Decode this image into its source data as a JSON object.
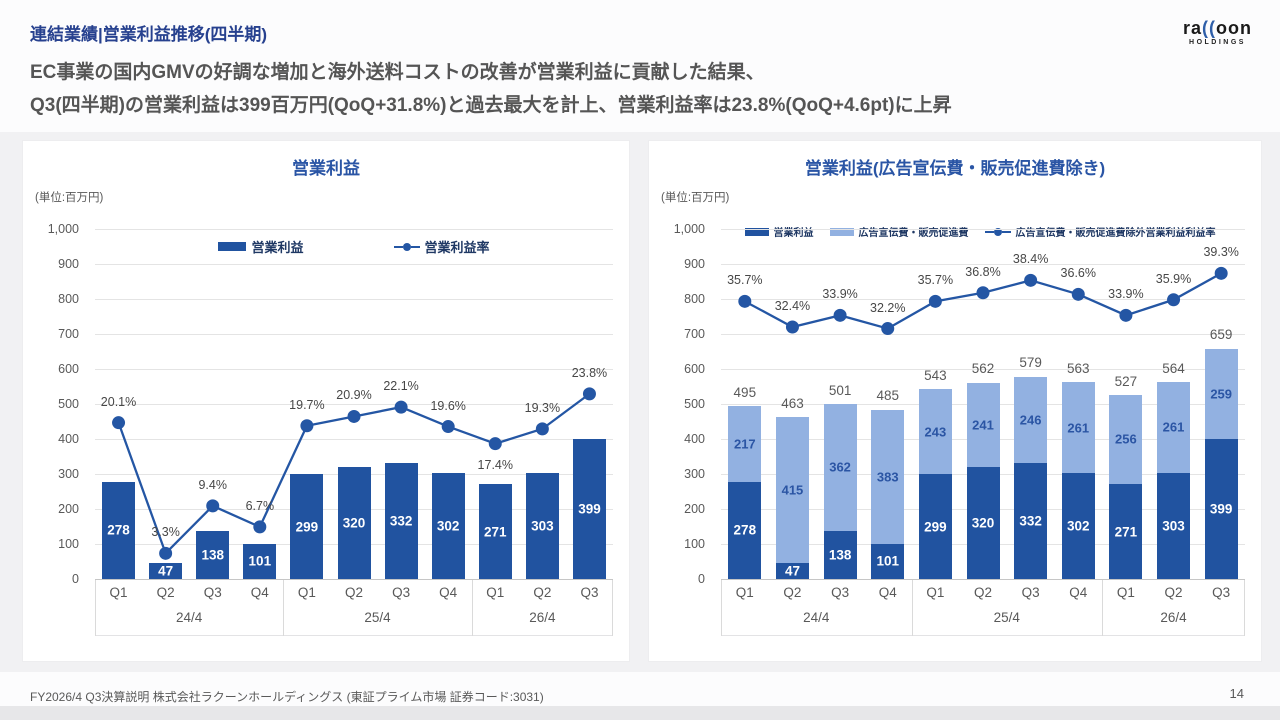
{
  "header": {
    "title": "連結業績|営業利益推移(四半期)",
    "subtitle_line1": "EC事業の国内GMVの好調な増加と海外送料コストの改善が営業利益に貢献した結果、",
    "subtitle_line2": "Q3(四半期)の営業利益は399百万円(QoQ+31.8%)と過去最大を計上、営業利益率は23.8%(QoQ+4.6pt)に上昇"
  },
  "logo": {
    "part1": "ra",
    "accent": "((",
    "part2": "oon",
    "sub": "HOLDINGS"
  },
  "footer": {
    "text": "FY2026/4 Q3決算説明 株式会社ラクーンホールディングス (東証プライム市場 証券コード:3031)",
    "page_number": "14"
  },
  "colors": {
    "bar_primary": "#2153A0",
    "bar_secondary": "#92B1E1",
    "line": "#2456A4",
    "title_navy": "#27418F",
    "chart_title_blue": "#2A55A5",
    "text_gray": "#595959",
    "band_gray": "#F1F1F3"
  },
  "chart_data": [
    {
      "type": "bar",
      "title": "営業利益",
      "unit_label": "(単位:百万円)",
      "ylim": [
        0,
        1000
      ],
      "ytick_step": 100,
      "secondary_ylim": [
        0,
        45
      ],
      "grid": true,
      "categories": [
        "Q1",
        "Q2",
        "Q3",
        "Q4",
        "Q1",
        "Q2",
        "Q3",
        "Q4",
        "Q1",
        "Q2",
        "Q3"
      ],
      "groups": [
        {
          "label": "24/4",
          "span": 4
        },
        {
          "label": "25/4",
          "span": 4
        },
        {
          "label": "26/4",
          "span": 3
        }
      ],
      "series": [
        {
          "name": "営業利益",
          "color": "#2153A0",
          "label_color": "#FFFFFF",
          "values": [
            278,
            47,
            138,
            101,
            299,
            320,
            332,
            302,
            271,
            303,
            399
          ]
        }
      ],
      "line_series": {
        "name": "営業利益率",
        "color": "#2456A4",
        "values_pct": [
          20.1,
          3.3,
          9.4,
          6.7,
          19.7,
          20.9,
          22.1,
          19.6,
          17.4,
          19.3,
          23.8
        ],
        "labels_below": [
          8
        ]
      }
    },
    {
      "type": "stacked-bar",
      "title": "営業利益(広告宣伝費・販売促進費除き)",
      "unit_label": "(単位:百万円)",
      "ylim": [
        0,
        1000
      ],
      "ytick_step": 100,
      "secondary_ylim": [
        0,
        45
      ],
      "grid": true,
      "categories": [
        "Q1",
        "Q2",
        "Q3",
        "Q4",
        "Q1",
        "Q2",
        "Q3",
        "Q4",
        "Q1",
        "Q2",
        "Q3"
      ],
      "groups": [
        {
          "label": "24/4",
          "span": 4
        },
        {
          "label": "25/4",
          "span": 4
        },
        {
          "label": "26/4",
          "span": 3
        }
      ],
      "series": [
        {
          "name": "営業利益",
          "color": "#2153A0",
          "label_color": "#FFFFFF",
          "values": [
            278,
            47,
            138,
            101,
            299,
            320,
            332,
            302,
            271,
            303,
            399
          ]
        },
        {
          "name": "広告宣伝費・販売促進費",
          "color": "#92B1E1",
          "label_color": "#2B55A4",
          "values": [
            217,
            415,
            362,
            383,
            243,
            241,
            246,
            261,
            256,
            261,
            259
          ]
        }
      ],
      "totals": [
        495,
        463,
        501,
        485,
        543,
        562,
        579,
        563,
        527,
        564,
        659
      ],
      "line_series": {
        "name": "広告宣伝費・販売促進費除外営業利益利益率",
        "color": "#2456A4",
        "values_pct": [
          35.7,
          32.4,
          33.9,
          32.2,
          35.7,
          36.8,
          38.4,
          36.6,
          33.9,
          35.9,
          39.3
        ],
        "labels_below": []
      }
    }
  ]
}
